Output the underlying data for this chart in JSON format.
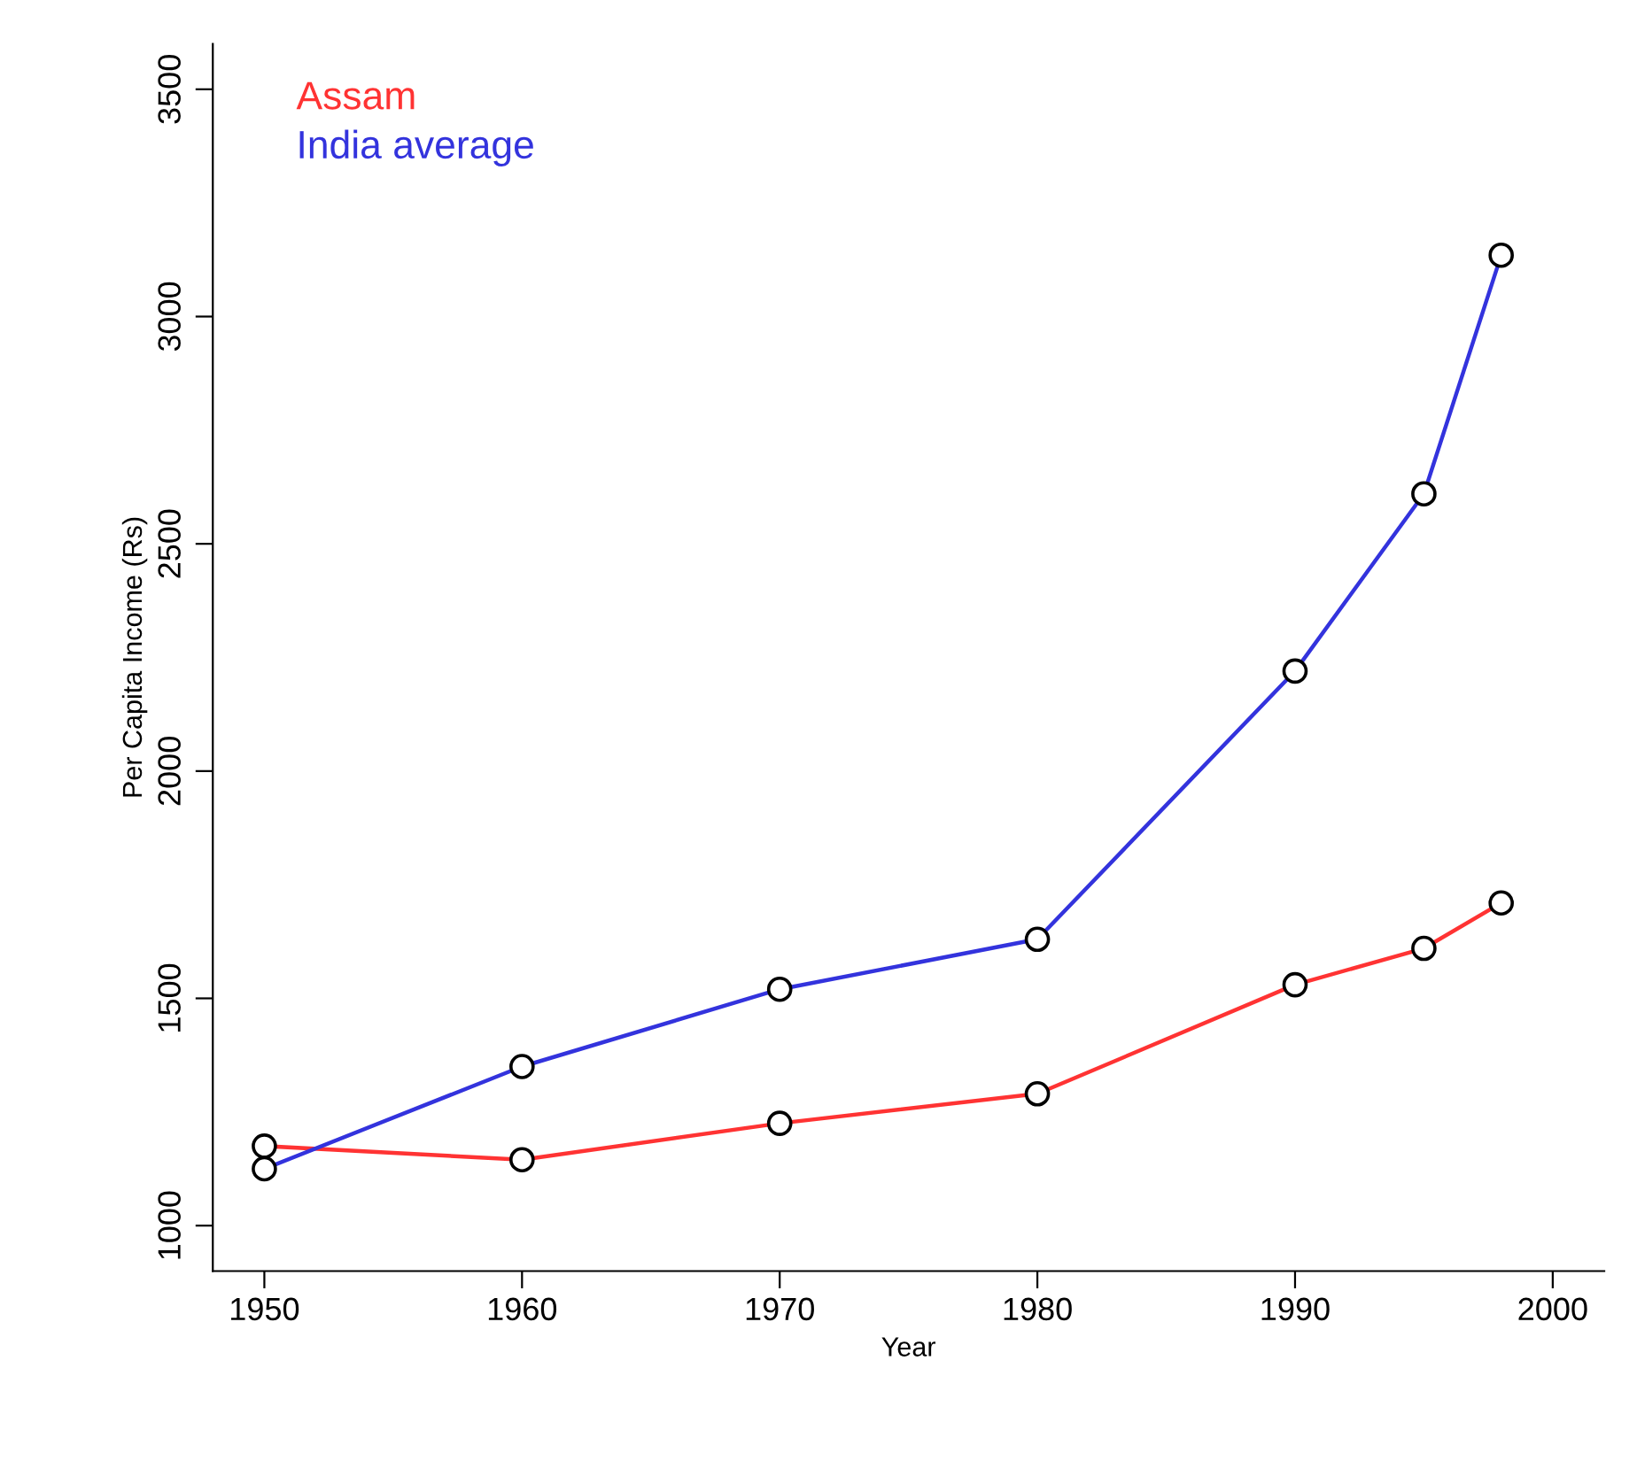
{
  "chart_data": {
    "type": "line",
    "xlabel": "Year",
    "ylabel": "Per Capita Income (Rs)",
    "x": [
      1950,
      1960,
      1970,
      1980,
      1990,
      1995,
      1998
    ],
    "series": [
      {
        "name": "Assam",
        "color": "#ff3333",
        "values": [
          1175,
          1145,
          1225,
          1290,
          1530,
          1610,
          1710
        ]
      },
      {
        "name": "India average",
        "color": "#3333dd",
        "values": [
          1125,
          1350,
          1520,
          1630,
          2220,
          2610,
          3135
        ]
      }
    ],
    "xlim": [
      1948,
      2002
    ],
    "ylim": [
      900,
      3600
    ],
    "xticks": [
      1950,
      1960,
      1970,
      1980,
      1990,
      2000
    ],
    "yticks": [
      1000,
      1500,
      2000,
      2500,
      3000,
      3500
    ],
    "marker": "circle",
    "line_style": "solid",
    "grid": false,
    "legend": "top left"
  }
}
